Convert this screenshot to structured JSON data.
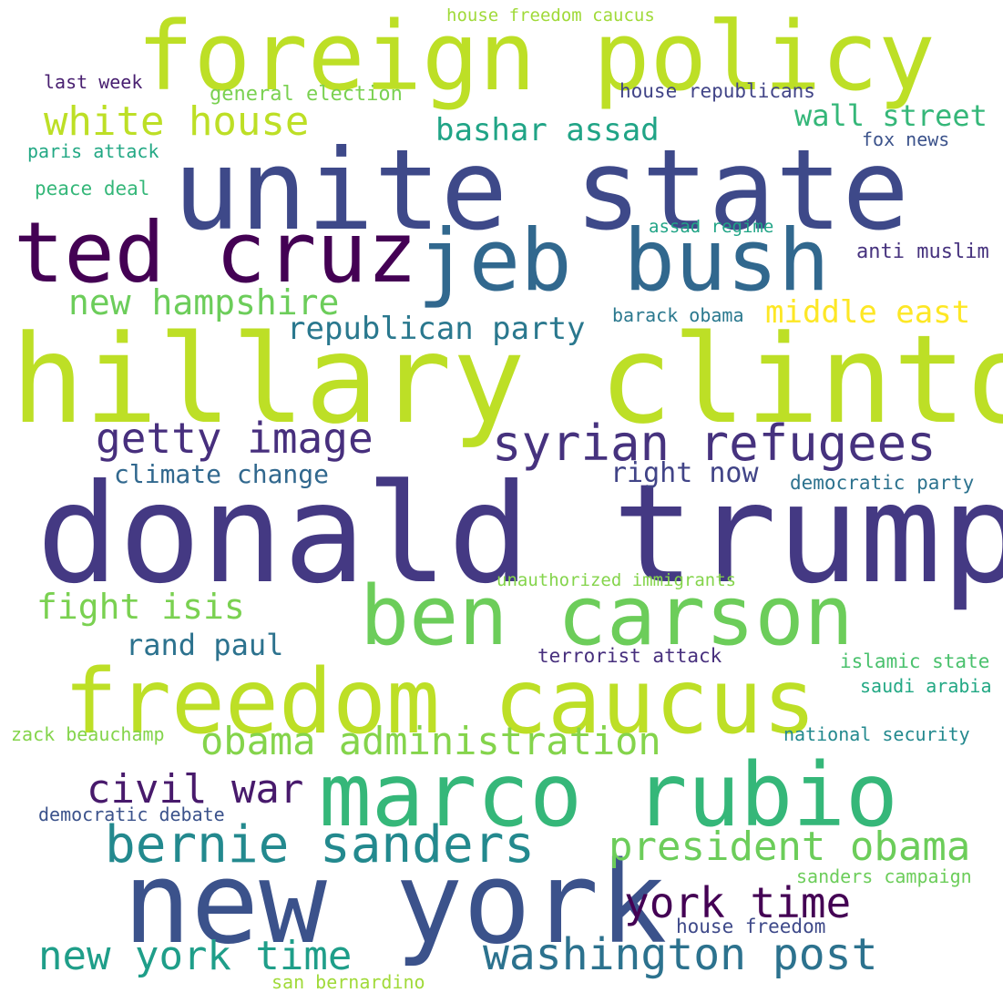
{
  "word_cloud": {
    "words": [
      {
        "text": "donald trump",
        "color": "#443983"
      },
      {
        "text": "hillary clinton",
        "color": "#bddf26"
      },
      {
        "text": "unite state",
        "color": "#3e4989"
      },
      {
        "text": "foreign policy",
        "color": "#bddf26"
      },
      {
        "text": "new york",
        "color": "#3b528b"
      },
      {
        "text": "freedom caucus",
        "color": "#bddf26"
      },
      {
        "text": "marco rubio",
        "color": "#35b779"
      },
      {
        "text": "ben carson",
        "color": "#6ccd5a"
      },
      {
        "text": "jeb bush",
        "color": "#31688e"
      },
      {
        "text": "ted cruz",
        "color": "#440154"
      },
      {
        "text": "syrian refugees",
        "color": "#46327e"
      },
      {
        "text": "bernie sanders",
        "color": "#23898e"
      },
      {
        "text": "white house",
        "color": "#bddf26"
      },
      {
        "text": "washington post",
        "color": "#2c728e"
      },
      {
        "text": "new york time",
        "color": "#1f9e89"
      },
      {
        "text": "getty image",
        "color": "#472f7d"
      },
      {
        "text": "president obama",
        "color": "#6ccd5a"
      },
      {
        "text": "obama administration",
        "color": "#84d44b"
      },
      {
        "text": "york time",
        "color": "#440154"
      },
      {
        "text": "civil war",
        "color": "#481a6c"
      },
      {
        "text": "new hampshire",
        "color": "#6ccd5a"
      },
      {
        "text": "fight isis",
        "color": "#7ad151"
      },
      {
        "text": "bashar assad",
        "color": "#20a486"
      },
      {
        "text": "republican party",
        "color": "#2a788e"
      },
      {
        "text": "middle east",
        "color": "#fde725"
      },
      {
        "text": "wall street",
        "color": "#35b779"
      },
      {
        "text": "rand paul",
        "color": "#2c728e"
      },
      {
        "text": "climate change",
        "color": "#31688e"
      },
      {
        "text": "right now",
        "color": "#414487"
      },
      {
        "text": "general election",
        "color": "#7ad151"
      },
      {
        "text": "house republicans",
        "color": "#414487"
      },
      {
        "text": "house freedom caucus",
        "color": "#a0da39"
      },
      {
        "text": "last week",
        "color": "#481f70"
      },
      {
        "text": "paris attack",
        "color": "#22a884"
      },
      {
        "text": "peace deal",
        "color": "#35b779"
      },
      {
        "text": "fox news",
        "color": "#3b528b"
      },
      {
        "text": "assad regime",
        "color": "#20a486"
      },
      {
        "text": "anti muslim",
        "color": "#46327e"
      },
      {
        "text": "barack obama",
        "color": "#2a788e"
      },
      {
        "text": "democratic party",
        "color": "#2c728e"
      },
      {
        "text": "unauthorized immigrants",
        "color": "#84d44b"
      },
      {
        "text": "terrorist attack",
        "color": "#472f7d"
      },
      {
        "text": "islamic state",
        "color": "#4ac16d"
      },
      {
        "text": "saudi arabia",
        "color": "#22a884"
      },
      {
        "text": "zack beauchamp",
        "color": "#84d44b"
      },
      {
        "text": "national security",
        "color": "#23898e"
      },
      {
        "text": "democratic debate",
        "color": "#3b528b"
      },
      {
        "text": "sanders campaign",
        "color": "#6ccd5a"
      },
      {
        "text": "house freedom",
        "color": "#3e4989"
      },
      {
        "text": "san bernardino",
        "color": "#a0da39"
      }
    ]
  }
}
